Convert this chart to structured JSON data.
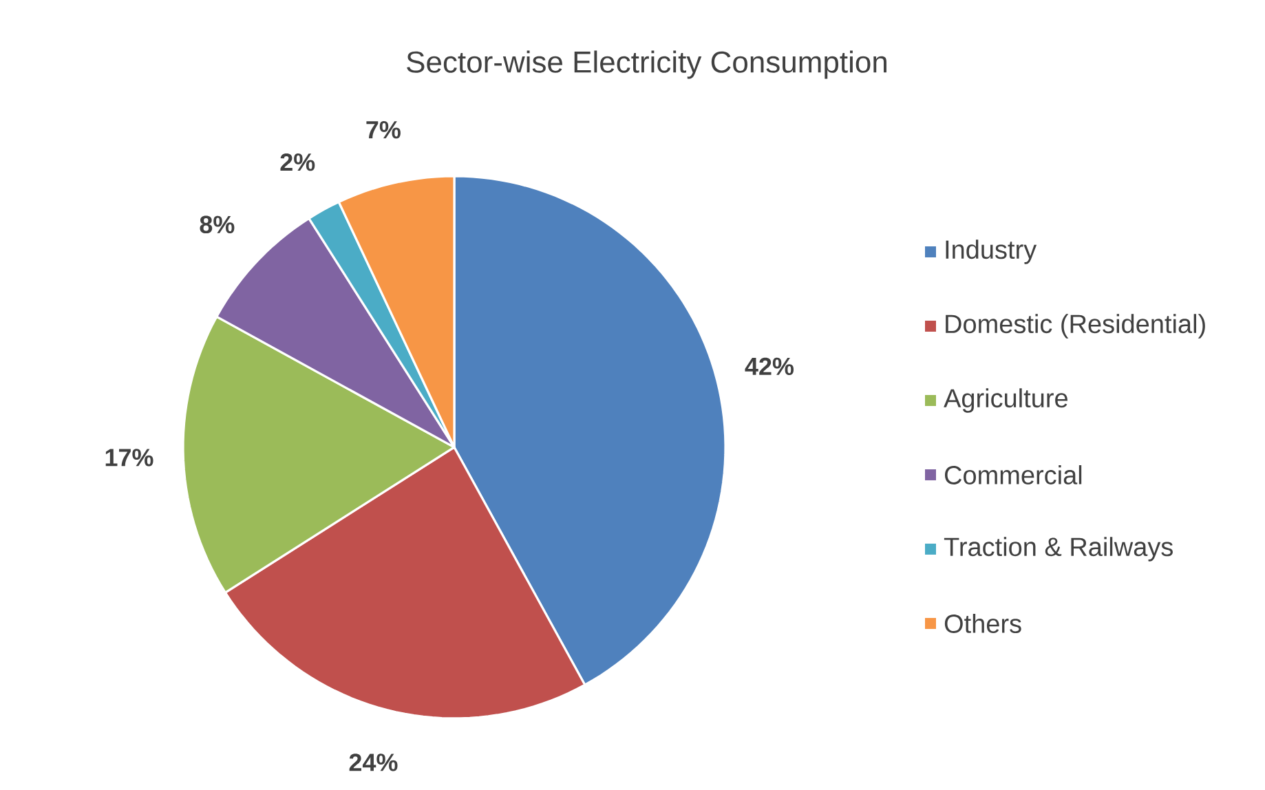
{
  "chart_data": {
    "type": "pie",
    "title": "Sector-wise Electricity Consumption",
    "categories": [
      "Industry",
      "Domestic (Residential)",
      "Agriculture",
      "Commercial",
      "Traction & Railways",
      "Others"
    ],
    "values": [
      42,
      24,
      17,
      8,
      2,
      7
    ],
    "colors": [
      "#4f81bd",
      "#c0504d",
      "#9bbb59",
      "#8064a2",
      "#4bacc6",
      "#f79646"
    ],
    "value_labels": [
      "42%",
      "24%",
      "17%",
      "8%",
      "2%",
      "7%"
    ],
    "legend": "right"
  }
}
